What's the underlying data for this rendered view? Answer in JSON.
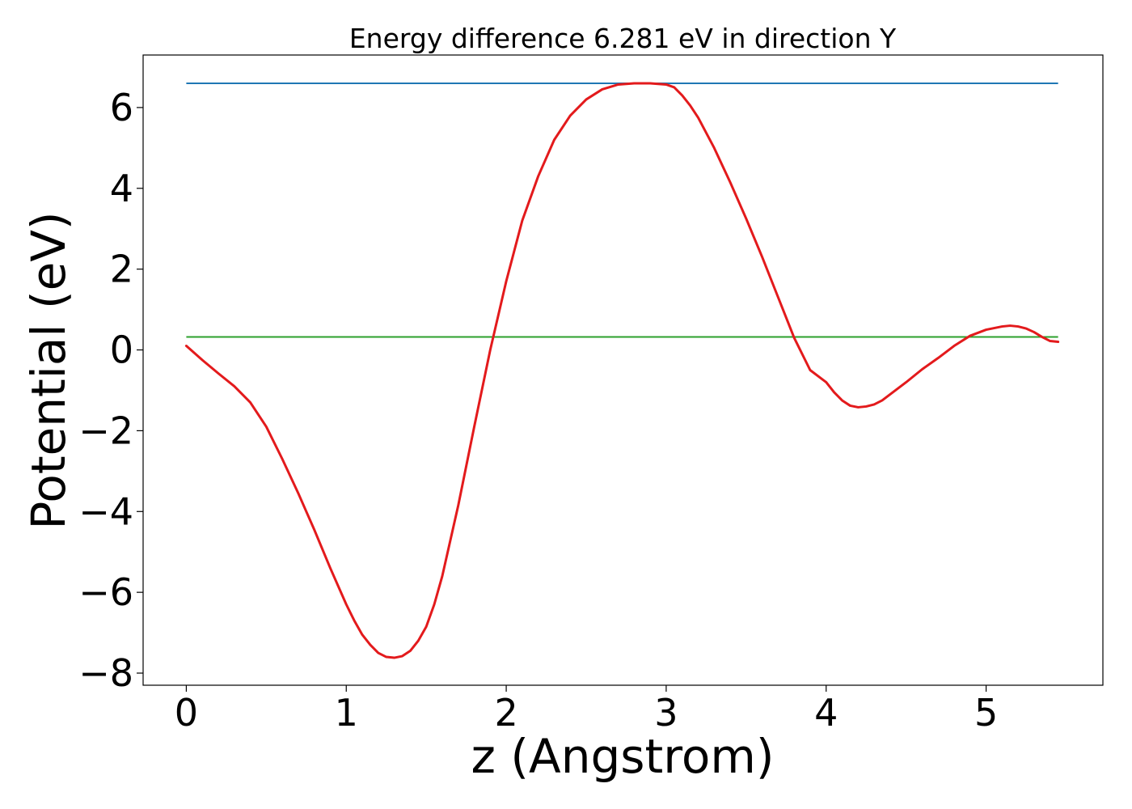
{
  "chart_data": {
    "type": "line",
    "title": "Energy difference 6.281 eV in direction Y",
    "xlabel": "z (Angstrom)",
    "ylabel": "Potential (eV)",
    "xlim": [
      -0.27,
      5.73
    ],
    "ylim": [
      -8.3,
      7.3
    ],
    "xticks": [
      0,
      1,
      2,
      3,
      4,
      5
    ],
    "xtick_labels": [
      "0",
      "1",
      "2",
      "3",
      "4",
      "5"
    ],
    "yticks": [
      6,
      4,
      2,
      0,
      -2,
      -4,
      -6,
      -8
    ],
    "ytick_labels": [
      "6",
      "4",
      "2",
      "0",
      "−2",
      "−4",
      "−6",
      "−8"
    ],
    "grid": false,
    "legend": "none",
    "colors": {
      "potential": "#e31a1c",
      "max_line": "#1f77b4",
      "mean_line": "#2ca02c"
    },
    "hlines": [
      {
        "y": 6.6,
        "x": [
          0,
          5.45
        ],
        "color": "#1f77b4"
      },
      {
        "y": 0.32,
        "x": [
          0,
          5.45
        ],
        "color": "#2ca02c"
      }
    ],
    "series": [
      {
        "x": [
          0,
          0.1,
          0.2,
          0.3,
          0.4,
          0.5,
          0.6,
          0.7,
          0.8,
          0.9,
          1.0,
          1.05,
          1.1,
          1.15,
          1.2,
          1.25,
          1.3,
          1.35,
          1.4,
          1.45,
          1.5,
          1.55,
          1.6,
          1.7,
          1.8,
          1.9,
          2.0,
          2.1,
          2.2,
          2.3,
          2.4,
          2.5,
          2.6,
          2.7,
          2.8,
          2.9,
          3.0,
          3.05,
          3.1,
          3.15,
          3.2,
          3.3,
          3.4,
          3.5,
          3.6,
          3.7,
          3.8,
          3.9,
          4.0,
          4.05,
          4.1,
          4.15,
          4.2,
          4.25,
          4.3,
          4.35,
          4.4,
          4.5,
          4.6,
          4.7,
          4.8,
          4.9,
          5.0,
          5.1,
          5.15,
          5.2,
          5.25,
          5.3,
          5.35,
          5.4,
          5.45
        ],
        "y": [
          0.1,
          -0.25,
          -0.58,
          -0.9,
          -1.3,
          -1.9,
          -2.7,
          -3.55,
          -4.45,
          -5.4,
          -6.3,
          -6.7,
          -7.05,
          -7.3,
          -7.5,
          -7.6,
          -7.62,
          -7.58,
          -7.45,
          -7.2,
          -6.85,
          -6.3,
          -5.6,
          -3.85,
          -1.9,
          0.0,
          1.7,
          3.2,
          4.3,
          5.2,
          5.8,
          6.2,
          6.45,
          6.57,
          6.6,
          6.6,
          6.57,
          6.5,
          6.3,
          6.05,
          5.75,
          5.0,
          4.15,
          3.25,
          2.3,
          1.3,
          0.3,
          -0.5,
          -0.8,
          -1.05,
          -1.25,
          -1.38,
          -1.42,
          -1.4,
          -1.35,
          -1.25,
          -1.1,
          -0.8,
          -0.48,
          -0.2,
          0.1,
          0.35,
          0.5,
          0.58,
          0.6,
          0.58,
          0.53,
          0.44,
          0.32,
          0.22,
          0.2
        ],
        "color": "#e31a1c"
      }
    ]
  }
}
